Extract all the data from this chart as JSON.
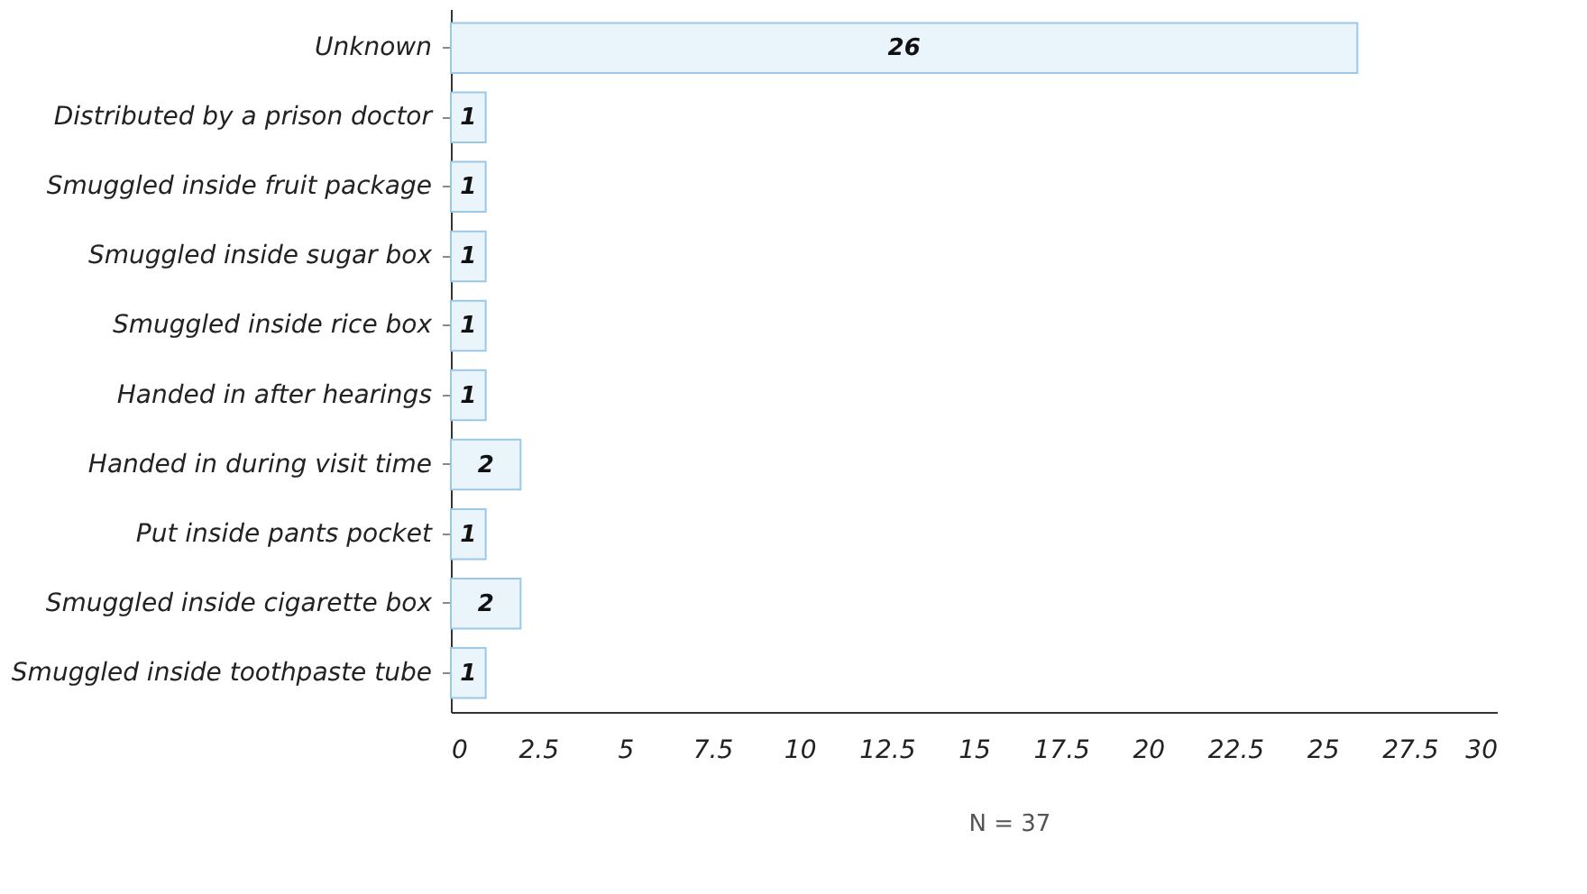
{
  "chart_data": {
    "type": "bar",
    "orientation": "horizontal",
    "categories": [
      "Unknown",
      "Distributed by a prison doctor",
      "Smuggled inside fruit package",
      "Smuggled inside sugar box",
      "Smuggled inside rice box",
      "Handed in after hearings",
      "Handed in during visit time",
      "Put inside pants pocket",
      "Smuggled inside cigarette box",
      "Smuggled inside toothpaste tube"
    ],
    "values": [
      26,
      1,
      1,
      1,
      1,
      1,
      2,
      1,
      2,
      1
    ],
    "color": "#eaf4fb",
    "xlim": [
      0,
      30
    ],
    "xticks": [
      0,
      2.5,
      5,
      7.5,
      10,
      12.5,
      15,
      17.5,
      20,
      22.5,
      25,
      27.5,
      30
    ],
    "data_labels": true,
    "grid": false,
    "annotations": [
      "N = 37"
    ]
  }
}
